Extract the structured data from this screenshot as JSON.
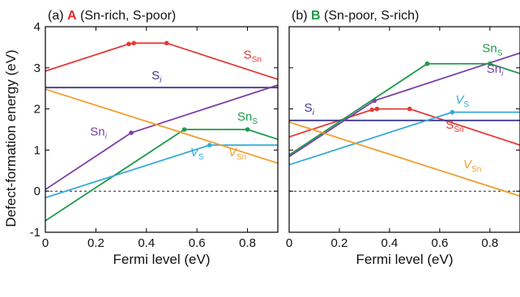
{
  "figure": {
    "ylabel": "Defect-formation energy (eV)",
    "accent_colors": {
      "panel_A": "#e8262b",
      "panel_B": "#1a9a48"
    }
  },
  "chart_data": [
    {
      "type": "line",
      "panel_prefix": "(a)",
      "panel_letter": "A",
      "panel_condition": "(Sn-rich, S-poor)",
      "xlabel": "Fermi level (eV)",
      "ylabel": "Defect-formation energy (eV)",
      "xlim": [
        0,
        0.92
      ],
      "ylim": [
        -1,
        4
      ],
      "x_ticks": [
        0,
        0.2,
        0.4,
        0.6,
        0.8
      ],
      "x_tick_labels": [
        "0",
        "0.2",
        "0.4",
        "0.6",
        "0.8"
      ],
      "y_ticks": [
        -1,
        0,
        1,
        2,
        3,
        4
      ],
      "y_tick_labels": [
        "-1",
        "0",
        "1",
        "2",
        "3",
        "4"
      ],
      "zero_line": "dashed",
      "series": [
        {
          "name": "S_Sn",
          "label_main": "S",
          "label_sub": "Sn",
          "label_italic": false,
          "color": "#e33a36",
          "x": [
            0,
            0.33,
            0.35,
            0.48,
            0.92
          ],
          "y": [
            2.92,
            3.58,
            3.6,
            3.6,
            2.72
          ],
          "transitions": [
            1,
            2,
            3
          ]
        },
        {
          "name": "S_i",
          "label_main": "S",
          "label_sub": "i",
          "label_italic": true,
          "color": "#3f3a8f",
          "x": [
            0,
            0.92
          ],
          "y": [
            2.52,
            2.52
          ],
          "transitions": []
        },
        {
          "name": "Sn_i",
          "label_main": "Sn",
          "label_sub": "i",
          "label_italic": true,
          "color": "#7b3fa8",
          "x": [
            0,
            0.34,
            0.92
          ],
          "y": [
            0.04,
            1.42,
            2.58
          ],
          "transitions": [
            1
          ]
        },
        {
          "name": "Sn_S",
          "label_main": "Sn",
          "label_sub": "S",
          "label_italic": false,
          "color": "#1d9a4a",
          "x": [
            0,
            0.55,
            0.8,
            0.92
          ],
          "y": [
            -0.72,
            1.5,
            1.5,
            1.26
          ],
          "transitions": [
            1,
            2
          ]
        },
        {
          "name": "V_S",
          "label_main": "V",
          "label_sub": "S",
          "label_italic": false,
          "label_main_italic": true,
          "color": "#36a9d8",
          "x": [
            0,
            0.65,
            0.92
          ],
          "y": [
            -0.16,
            1.12,
            1.12
          ],
          "transitions": [
            1
          ]
        },
        {
          "name": "V_Sn",
          "label_main": "V",
          "label_sub": "Sn",
          "label_italic": false,
          "label_main_italic": true,
          "color": "#f0a030",
          "x": [
            0,
            0.92
          ],
          "y": [
            2.48,
            0.68
          ],
          "transitions": []
        }
      ],
      "series_labels": [
        {
          "series": "S_Sn",
          "lx": 0.82,
          "ly": 3.22
        },
        {
          "series": "S_i",
          "lx": 0.44,
          "ly": 2.72
        },
        {
          "series": "Sn_i",
          "lx": 0.21,
          "ly": 1.35
        },
        {
          "series": "Sn_S",
          "lx": 0.8,
          "ly": 1.72
        },
        {
          "series": "V_S",
          "lx": 0.6,
          "ly": 0.85
        },
        {
          "series": "V_Sn",
          "lx": 0.76,
          "ly": 0.85
        }
      ]
    },
    {
      "type": "line",
      "panel_prefix": "(b)",
      "panel_letter": "B",
      "panel_condition": "(Sn-poor, S-rich)",
      "xlabel": "Fermi level (eV)",
      "ylabel": "",
      "xlim": [
        0,
        0.92
      ],
      "ylim": [
        -1,
        4
      ],
      "x_ticks": [
        0,
        0.2,
        0.4,
        0.6,
        0.8
      ],
      "x_tick_labels": [
        "0",
        "0.2",
        "0.4",
        "0.6",
        "0.8"
      ],
      "y_ticks": [
        -1,
        0,
        1,
        2,
        3,
        4
      ],
      "y_tick_labels": [],
      "zero_line": "dashed",
      "series": [
        {
          "name": "S_Sn",
          "label_main": "S",
          "label_sub": "Sn",
          "label_italic": false,
          "color": "#e33a36",
          "x": [
            0,
            0.33,
            0.35,
            0.48,
            0.92
          ],
          "y": [
            1.32,
            1.98,
            2.0,
            2.0,
            1.12
          ],
          "transitions": [
            1,
            2,
            3
          ]
        },
        {
          "name": "S_i",
          "label_main": "S",
          "label_sub": "i",
          "label_italic": true,
          "color": "#3f3a8f",
          "x": [
            0,
            0.92
          ],
          "y": [
            1.72,
            1.72
          ],
          "transitions": []
        },
        {
          "name": "Sn_i",
          "label_main": "Sn",
          "label_sub": "i",
          "label_italic": true,
          "color": "#7b3fa8",
          "x": [
            0,
            0.34,
            0.92
          ],
          "y": [
            0.84,
            2.2,
            3.36
          ],
          "transitions": [
            1
          ]
        },
        {
          "name": "Sn_S",
          "label_main": "Sn",
          "label_sub": "S",
          "label_italic": false,
          "color": "#1d9a4a",
          "x": [
            0,
            0.55,
            0.8,
            0.92
          ],
          "y": [
            0.88,
            3.1,
            3.1,
            2.86
          ],
          "transitions": [
            1,
            2
          ]
        },
        {
          "name": "V_S",
          "label_main": "V",
          "label_sub": "S",
          "label_italic": false,
          "label_main_italic": true,
          "color": "#36a9d8",
          "x": [
            0,
            0.65,
            0.92
          ],
          "y": [
            0.64,
            1.92,
            1.92
          ],
          "transitions": [
            1
          ]
        },
        {
          "name": "V_Sn",
          "label_main": "V",
          "label_sub": "Sn",
          "label_italic": false,
          "label_main_italic": true,
          "color": "#f0a030",
          "x": [
            0,
            0.92
          ],
          "y": [
            1.68,
            -0.12
          ],
          "transitions": []
        }
      ],
      "series_labels": [
        {
          "series": "S_Sn",
          "lx": 0.66,
          "ly": 1.52
        },
        {
          "series": "S_i",
          "lx": 0.08,
          "ly": 1.93
        },
        {
          "series": "Sn_i",
          "lx": 0.82,
          "ly": 2.88
        },
        {
          "series": "Sn_S",
          "lx": 0.81,
          "ly": 3.38
        },
        {
          "series": "V_S",
          "lx": 0.69,
          "ly": 2.13
        },
        {
          "series": "V_Sn",
          "lx": 0.73,
          "ly": 0.56
        }
      ]
    }
  ]
}
